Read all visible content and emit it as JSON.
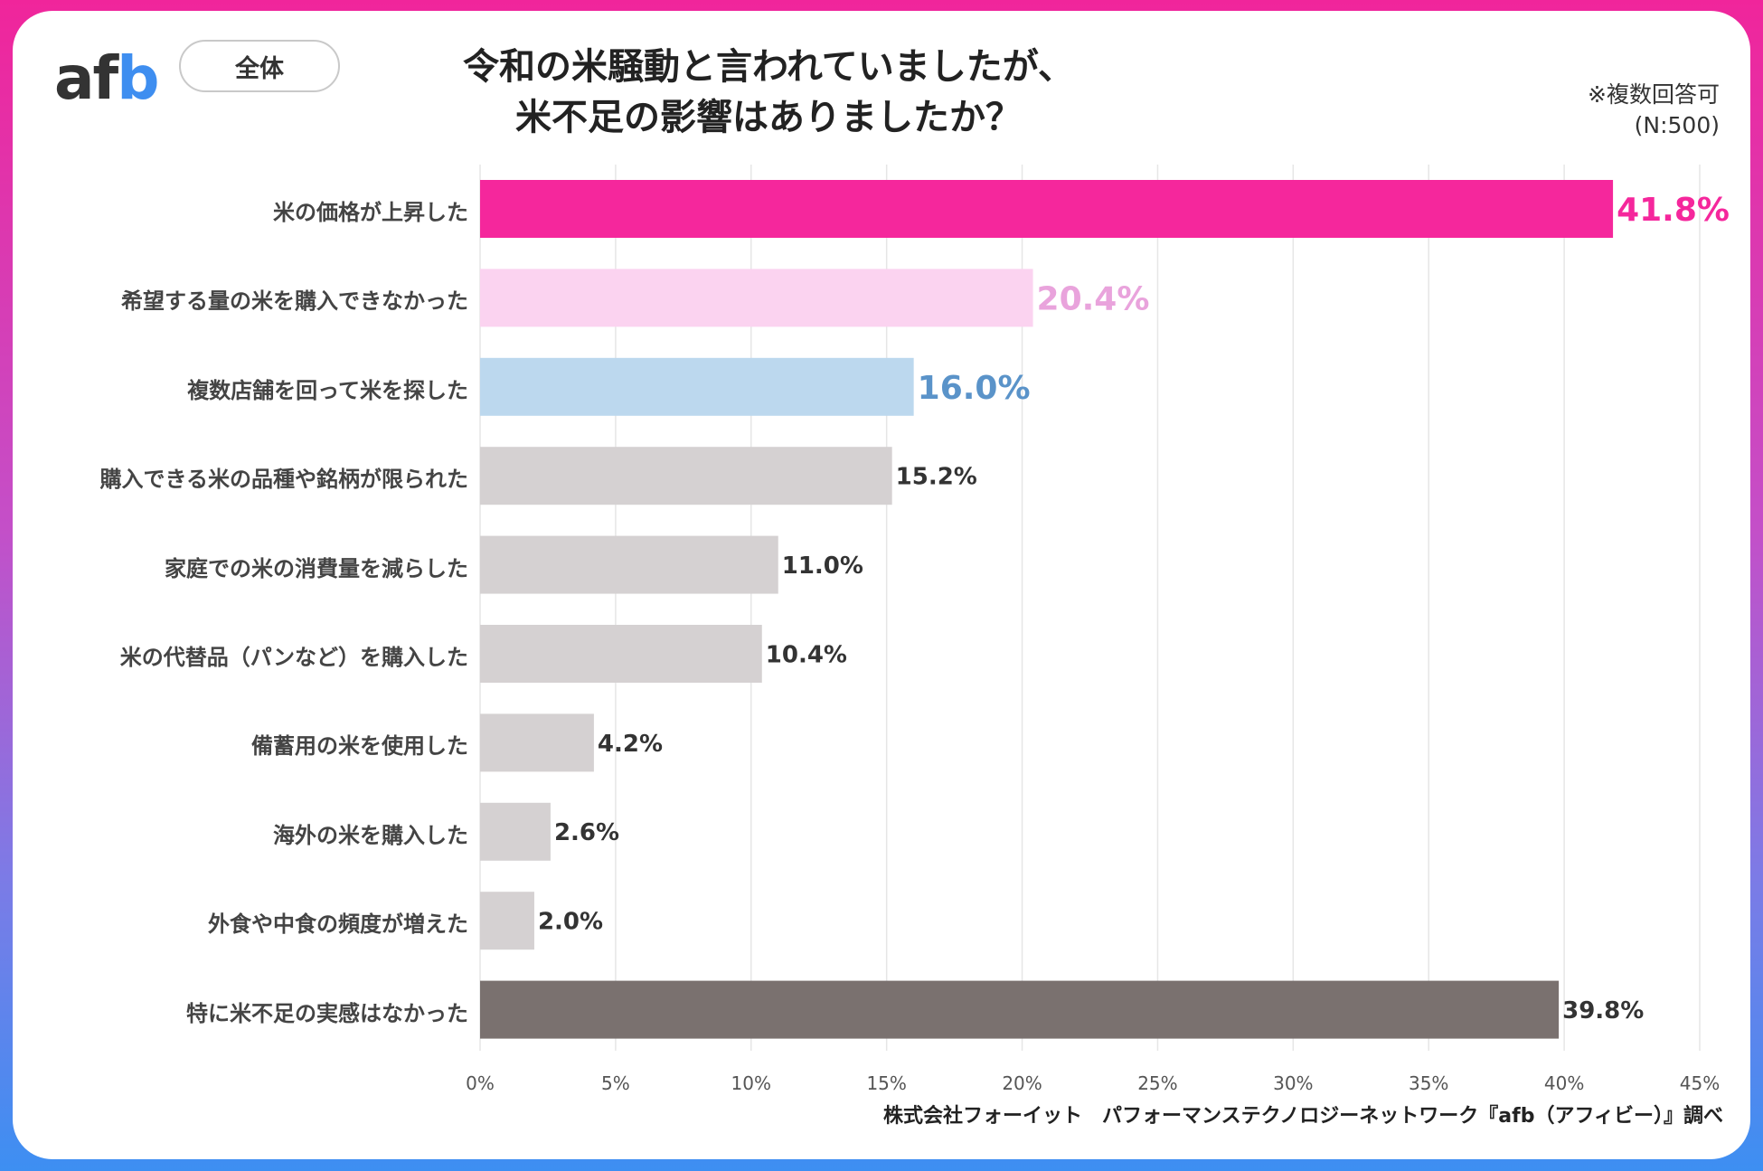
{
  "logo": {
    "text_a": "a",
    "text_f": "f",
    "text_b": "b"
  },
  "scope_label": "全体",
  "note": {
    "multi": "※複数回答可",
    "n": "(N:500)"
  },
  "source": "株式会社フォーイット　パフォーマンステクノロジーネットワーク『afb（アフィビー）』調べ",
  "colors": {
    "pink": "#f5279c",
    "light_pink": "#fbd3f0",
    "light_pink_text": "#e9a3dc",
    "blue": "#bcd8ee",
    "blue_text": "#5a93c9",
    "gray": "#d5d1d2",
    "dark_gray": "#7a716f",
    "label": "#333333"
  },
  "chart_data": {
    "type": "bar",
    "orientation": "horizontal",
    "title": "令和の米騒動と言われていましたが、\n米不足の影響はありましたか？",
    "title_lines": [
      "令和の米騒動と言われていましたが、",
      "米不足の影響はありましたか？"
    ],
    "categories": [
      "米の価格が上昇した",
      "希望する量の米を購入できなかった",
      "複数店舗を回って米を探した",
      "購入できる米の品種や銘柄が限られた",
      "家庭での米の消費量を減らした",
      "米の代替品（パンなど）を購入した",
      "備蓄用の米を使用した",
      "海外の米を購入した",
      "外食や中食の頻度が増えた",
      "特に米不足の実感はなかった"
    ],
    "values": [
      41.8,
      20.4,
      16.0,
      15.2,
      11.0,
      10.4,
      4.2,
      2.6,
      2.0,
      39.8
    ],
    "value_labels": [
      "41.8%",
      "20.4%",
      "16.0%",
      "15.2%",
      "11.0%",
      "10.4%",
      "4.2%",
      "2.6%",
      "2.0%",
      "39.8%"
    ],
    "xlim": [
      0,
      45
    ],
    "xticks": [
      0,
      5,
      10,
      15,
      20,
      25,
      30,
      35,
      40,
      45
    ],
    "xtick_labels": [
      "0%",
      "5%",
      "10%",
      "15%",
      "20%",
      "25%",
      "30%",
      "35%",
      "40%",
      "45%"
    ],
    "grid": true
  }
}
